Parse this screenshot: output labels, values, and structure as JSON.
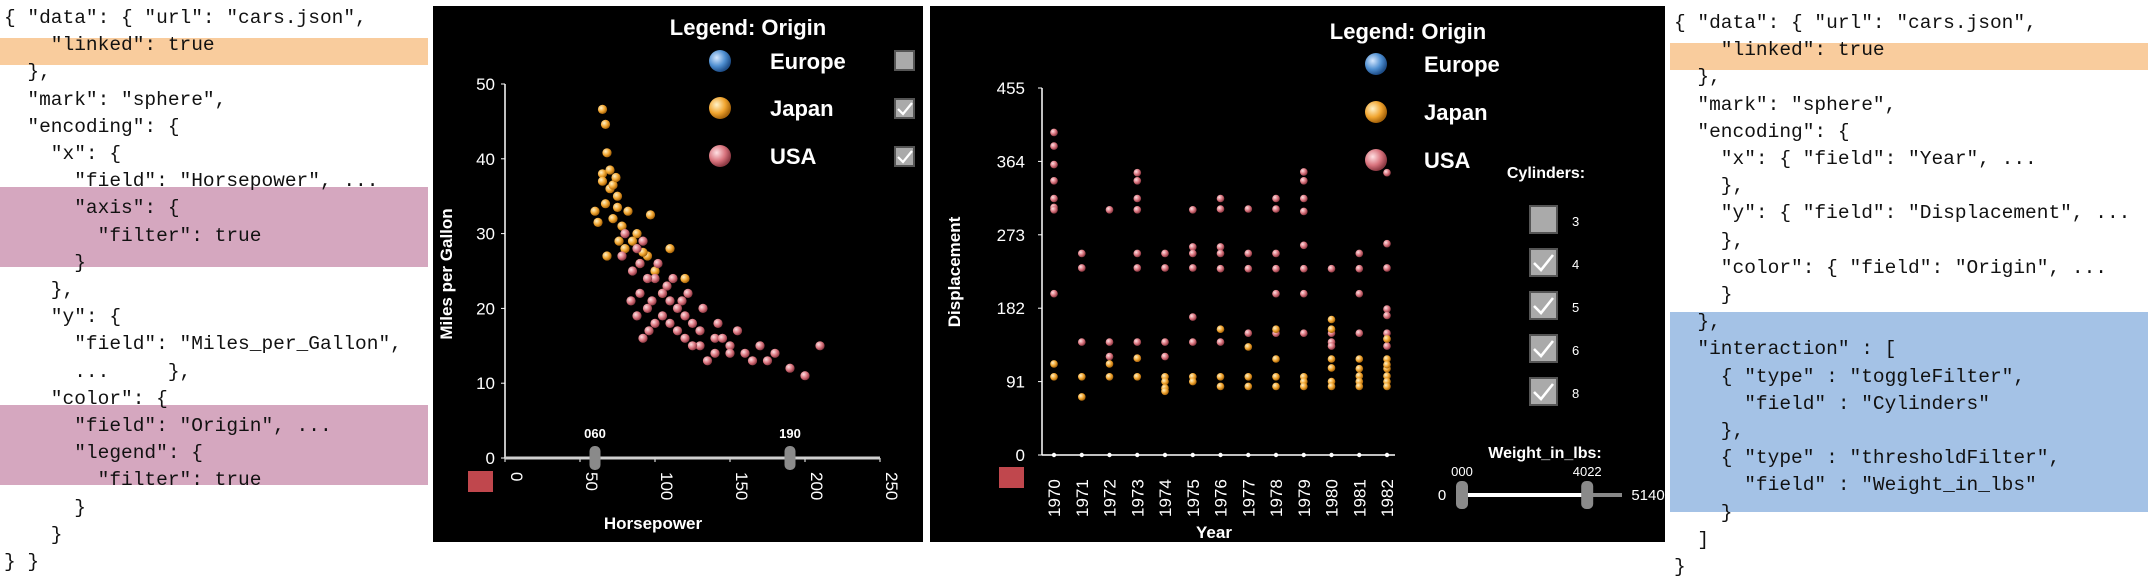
{
  "colors": {
    "europe": "#4f8fd1",
    "japan": "#f1a530",
    "usa": "#d9747e",
    "highlight_orange": "#f9cc9d",
    "highlight_pink": "#d5a7bf",
    "highlight_blue": "#a4c2e6",
    "reset_button": "#c0474d",
    "panel_bg": "#000000"
  },
  "code_left": [
    "{ \"data\": { \"url\": \"cars.json\",",
    "    \"linked\": true",
    "  },",
    "  \"mark\": \"sphere\",",
    "  \"encoding\": {",
    "    \"x\": {",
    "      \"field\": \"Horsepower\", ...",
    "      \"axis\": {",
    "        \"filter\": true",
    "      }",
    "    },",
    "    \"y\": {",
    "      \"field\": \"Miles_per_Gallon\",",
    "      ...     },",
    "    \"color\": {",
    "      \"field\": \"Origin\", ...",
    "      \"legend\": {",
    "        \"filter\": true",
    "      }",
    "    }",
    "} }"
  ],
  "code_right": [
    "{ \"data\": { \"url\": \"cars.json\",",
    "    \"linked\": true",
    "  },",
    "  \"mark\": \"sphere\",",
    "  \"encoding\": {",
    "    \"x\": { \"field\": \"Year\", ...",
    "    },",
    "    \"y\": { \"field\": \"Displacement\", ...",
    "    },",
    "    \"color\": { \"field\": \"Origin\", ...",
    "    }",
    "  },",
    "  \"interaction\" : [",
    "    { \"type\" : \"toggleFilter\",",
    "      \"field\" : \"Cylinders\"",
    "    },",
    "    { \"type\" : \"thresholdFilter\",",
    "      \"field\" : \"Weight_in_lbs\"",
    "    }",
    "  ]",
    "}"
  ],
  "legend": {
    "title": "Legend: Origin",
    "items": [
      {
        "label": "Europe",
        "color_key": "europe",
        "checked": false
      },
      {
        "label": "Japan",
        "color_key": "japan",
        "checked": true
      },
      {
        "label": "USA",
        "color_key": "usa",
        "checked": true
      }
    ]
  },
  "cylinders": {
    "title": "Cylinders:",
    "items": [
      {
        "label": "3",
        "checked": false
      },
      {
        "label": "4",
        "checked": true
      },
      {
        "label": "5",
        "checked": true
      },
      {
        "label": "6",
        "checked": true
      },
      {
        "label": "8",
        "checked": true
      }
    ]
  },
  "weight_slider": {
    "title": "Weight_in_lbs:",
    "min_label": "0",
    "max_label": "5140",
    "low_label": "000",
    "high_label": "4022",
    "low_value": 0,
    "high_value": 4022,
    "max_value": 5140
  },
  "horsepower_filter": {
    "low_label": "060",
    "high_label": "190",
    "low_value": 60,
    "high_value": 190
  },
  "chart_data": [
    {
      "type": "scatter",
      "title": "",
      "xlabel": "Horsepower",
      "ylabel": "Miles per Gallon",
      "xlim": [
        0,
        250
      ],
      "ylim": [
        0,
        50
      ],
      "x_ticks": [
        "0",
        "50",
        "100",
        "150",
        "200",
        "250"
      ],
      "y_ticks": [
        "0",
        "10",
        "20",
        "30",
        "40",
        "50"
      ],
      "series": [
        {
          "name": "Japan",
          "color_key": "japan",
          "points": [
            [
              65,
              46.6
            ],
            [
              67,
              44.6
            ],
            [
              68,
              40.8
            ],
            [
              65,
              38
            ],
            [
              70,
              36
            ],
            [
              67,
              34
            ],
            [
              75,
              33.5
            ],
            [
              60,
              33
            ],
            [
              72,
              32
            ],
            [
              88,
              30
            ],
            [
              80,
              28
            ],
            [
              95,
              27
            ],
            [
              97,
              32.5
            ],
            [
              110,
              28
            ],
            [
              120,
              24
            ],
            [
              70,
              38.5
            ],
            [
              75,
              35
            ],
            [
              78,
              31
            ],
            [
              85,
              29
            ],
            [
              90,
              26
            ],
            [
              100,
              25
            ],
            [
              105,
              22
            ],
            [
              65,
              37
            ],
            [
              72,
              36.5
            ],
            [
              62,
              31.5
            ],
            [
              92,
              27.5
            ],
            [
              82,
              33
            ],
            [
              76,
              29
            ],
            [
              68,
              27
            ],
            [
              74,
              37.5
            ]
          ]
        },
        {
          "name": "USA",
          "color_key": "usa",
          "points": [
            [
              80,
              30
            ],
            [
              88,
              28
            ],
            [
              90,
              26
            ],
            [
              100,
              24
            ],
            [
              105,
              22
            ],
            [
              110,
              21
            ],
            [
              115,
              20
            ],
            [
              120,
              19
            ],
            [
              125,
              18
            ],
            [
              130,
              17
            ],
            [
              140,
              16
            ],
            [
              150,
              15
            ],
            [
              160,
              14
            ],
            [
              175,
              13
            ],
            [
              190,
              12
            ],
            [
              200,
              11
            ],
            [
              210,
              15
            ],
            [
              90,
              22
            ],
            [
              95,
              20
            ],
            [
              100,
              18
            ],
            [
              110,
              18
            ],
            [
              120,
              16
            ],
            [
              130,
              15
            ],
            [
              140,
              14
            ],
            [
              150,
              14
            ],
            [
              165,
              13
            ],
            [
              85,
              25
            ],
            [
              95,
              24
            ],
            [
              105,
              19
            ],
            [
              115,
              17
            ],
            [
              88,
              19
            ],
            [
              98,
              21
            ],
            [
              108,
              23
            ],
            [
              125,
              15
            ],
            [
              135,
              13
            ],
            [
              145,
              16
            ],
            [
              155,
              17
            ],
            [
              170,
              15
            ],
            [
              180,
              14
            ],
            [
              78,
              27
            ],
            [
              92,
              29
            ],
            [
              102,
              26
            ],
            [
              112,
              24
            ],
            [
              122,
              22
            ],
            [
              132,
              20
            ],
            [
              142,
              18
            ],
            [
              92,
              16
            ],
            [
              84,
              21
            ],
            [
              96,
              17
            ],
            [
              118,
              21
            ]
          ]
        }
      ]
    },
    {
      "type": "scatter",
      "title": "",
      "xlabel": "Year",
      "ylabel": "Displacement",
      "ylim": [
        0,
        455
      ],
      "x_ticks": [
        "1970",
        "1971",
        "1972",
        "1973",
        "1974",
        "1975",
        "1976",
        "1977",
        "1978",
        "1979",
        "1980",
        "1981",
        "1982"
      ],
      "y_ticks": [
        "0",
        "91",
        "182",
        "273",
        "364",
        "455"
      ],
      "series": [
        {
          "name": "USA",
          "color_key": "usa",
          "points": [
            [
              1970,
              400
            ],
            [
              1970,
              383
            ],
            [
              1970,
              360
            ],
            [
              1970,
              340
            ],
            [
              1970,
              318
            ],
            [
              1970,
              307
            ],
            [
              1970,
              304
            ],
            [
              1970,
              200
            ],
            [
              1971,
              250
            ],
            [
              1971,
              232
            ],
            [
              1971,
              140
            ],
            [
              1972,
              304
            ],
            [
              1972,
              140
            ],
            [
              1972,
              122
            ],
            [
              1973,
              350
            ],
            [
              1973,
              340
            ],
            [
              1973,
              318
            ],
            [
              1973,
              304
            ],
            [
              1973,
              250
            ],
            [
              1973,
              232
            ],
            [
              1973,
              140
            ],
            [
              1973,
              120
            ],
            [
              1974,
              250
            ],
            [
              1974,
              232
            ],
            [
              1974,
              140
            ],
            [
              1974,
              122
            ],
            [
              1975,
              304
            ],
            [
              1975,
              258
            ],
            [
              1975,
              250
            ],
            [
              1975,
              232
            ],
            [
              1975,
              171
            ],
            [
              1975,
              140
            ],
            [
              1976,
              318
            ],
            [
              1976,
              305
            ],
            [
              1976,
              258
            ],
            [
              1976,
              250
            ],
            [
              1976,
              231
            ],
            [
              1976,
              140
            ],
            [
              1977,
              305
            ],
            [
              1977,
              250
            ],
            [
              1977,
              231
            ],
            [
              1977,
              151
            ],
            [
              1978,
              318
            ],
            [
              1978,
              305
            ],
            [
              1978,
              250
            ],
            [
              1978,
              231
            ],
            [
              1978,
              200
            ],
            [
              1978,
              151
            ],
            [
              1979,
              351
            ],
            [
              1979,
              340
            ],
            [
              1979,
              318
            ],
            [
              1979,
              302
            ],
            [
              1979,
              260
            ],
            [
              1979,
              231
            ],
            [
              1979,
              200
            ],
            [
              1979,
              151
            ],
            [
              1980,
              231
            ],
            [
              1980,
              151
            ],
            [
              1980,
              140
            ],
            [
              1980,
              135
            ],
            [
              1981,
              250
            ],
            [
              1981,
              231
            ],
            [
              1981,
              200
            ],
            [
              1981,
              151
            ],
            [
              1982,
              350
            ],
            [
              1982,
              262
            ],
            [
              1982,
              232
            ],
            [
              1982,
              181
            ],
            [
              1982,
              173
            ],
            [
              1982,
              151
            ],
            [
              1982,
              144
            ],
            [
              1982,
              135
            ]
          ]
        },
        {
          "name": "Japan",
          "color_key": "japan",
          "points": [
            [
              1970,
              113
            ],
            [
              1970,
              97
            ],
            [
              1971,
              97
            ],
            [
              1971,
              72
            ],
            [
              1972,
              113
            ],
            [
              1972,
              97
            ],
            [
              1973,
              120
            ],
            [
              1973,
              97
            ],
            [
              1974,
              97
            ],
            [
              1974,
              91
            ],
            [
              1974,
              83
            ],
            [
              1974,
              79
            ],
            [
              1975,
              97
            ],
            [
              1975,
              91
            ],
            [
              1976,
              97
            ],
            [
              1976,
              85
            ],
            [
              1976,
              156
            ],
            [
              1977,
              97
            ],
            [
              1977,
              85
            ],
            [
              1977,
              134
            ],
            [
              1978,
              97
            ],
            [
              1978,
              85
            ],
            [
              1978,
              119
            ],
            [
              1978,
              156
            ],
            [
              1979,
              97
            ],
            [
              1979,
              91
            ],
            [
              1979,
              85
            ],
            [
              1980,
              119
            ],
            [
              1980,
              108
            ],
            [
              1980,
              91
            ],
            [
              1980,
              85
            ],
            [
              1980,
              156
            ],
            [
              1980,
              168
            ],
            [
              1981,
              119
            ],
            [
              1981,
              107
            ],
            [
              1981,
              98
            ],
            [
              1981,
              91
            ],
            [
              1981,
              85
            ],
            [
              1982,
              144
            ],
            [
              1982,
              119
            ],
            [
              1982,
              107
            ],
            [
              1982,
              98
            ],
            [
              1982,
              91
            ],
            [
              1982,
              85
            ],
            [
              1982,
              112
            ]
          ]
        }
      ]
    }
  ]
}
